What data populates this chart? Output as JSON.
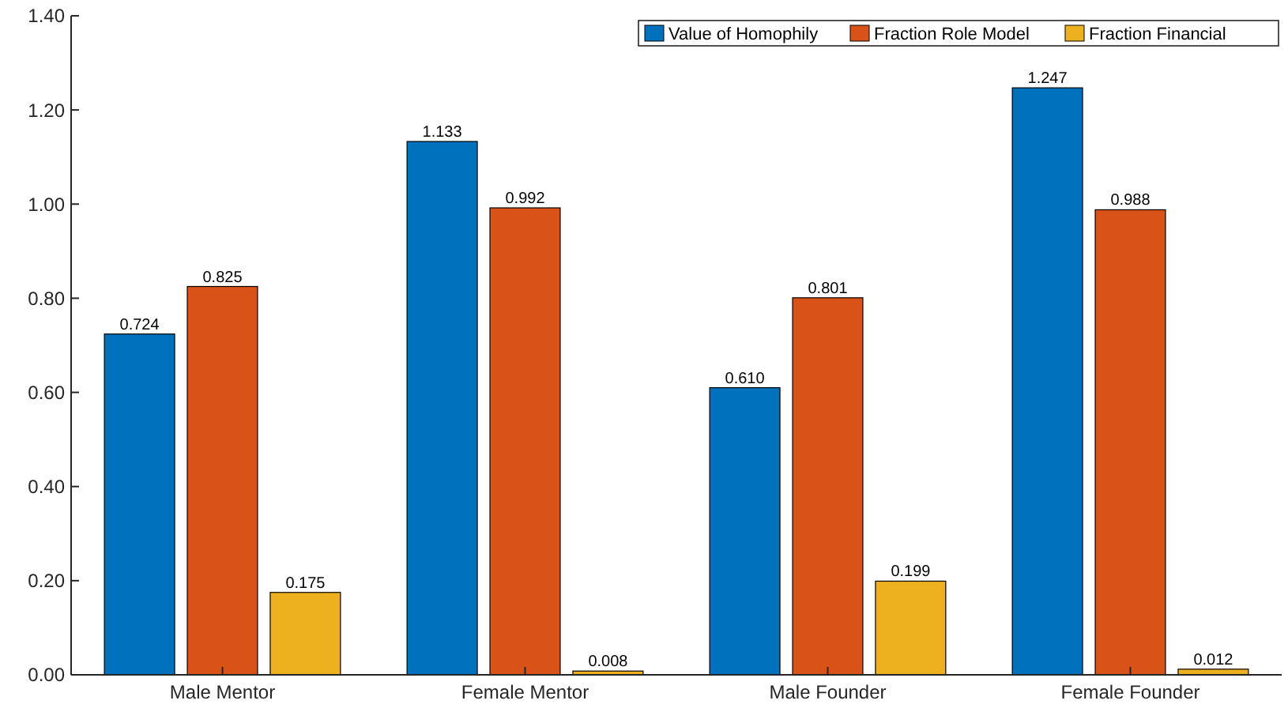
{
  "chart_data": {
    "type": "bar",
    "categories": [
      "Male Mentor",
      "Female Mentor",
      "Male Founder",
      "Female Founder"
    ],
    "series": [
      {
        "name": "Value of Homophily",
        "color": "#0072bd",
        "values": [
          0.724,
          1.133,
          0.61,
          1.247
        ],
        "value_labels": [
          "0.724",
          "1.133",
          "0.610",
          "1.247"
        ]
      },
      {
        "name": "Fraction Role Model",
        "color": "#d95319",
        "values": [
          0.825,
          0.992,
          0.801,
          0.988
        ],
        "value_labels": [
          "0.825",
          "0.992",
          "0.801",
          "0.988"
        ]
      },
      {
        "name": "Fraction Financial",
        "color": "#edb120",
        "values": [
          0.175,
          0.008,
          0.199,
          0.012
        ],
        "value_labels": [
          "0.175",
          "0.008",
          "0.199",
          "0.012"
        ]
      }
    ],
    "ylim": [
      0,
      1.4
    ],
    "yticks": [
      {
        "value": 0,
        "label": "0.00"
      },
      {
        "value": 0.2,
        "label": "0.20"
      },
      {
        "value": 0.4,
        "label": "0.40"
      },
      {
        "value": 0.6,
        "label": "0.60"
      },
      {
        "value": 0.8,
        "label": "0.80"
      },
      {
        "value": 1,
        "label": "1.00"
      },
      {
        "value": 1.2,
        "label": "1.20"
      },
      {
        "value": 1.4,
        "label": "1.40"
      }
    ],
    "legend": "top right",
    "grid": false
  }
}
